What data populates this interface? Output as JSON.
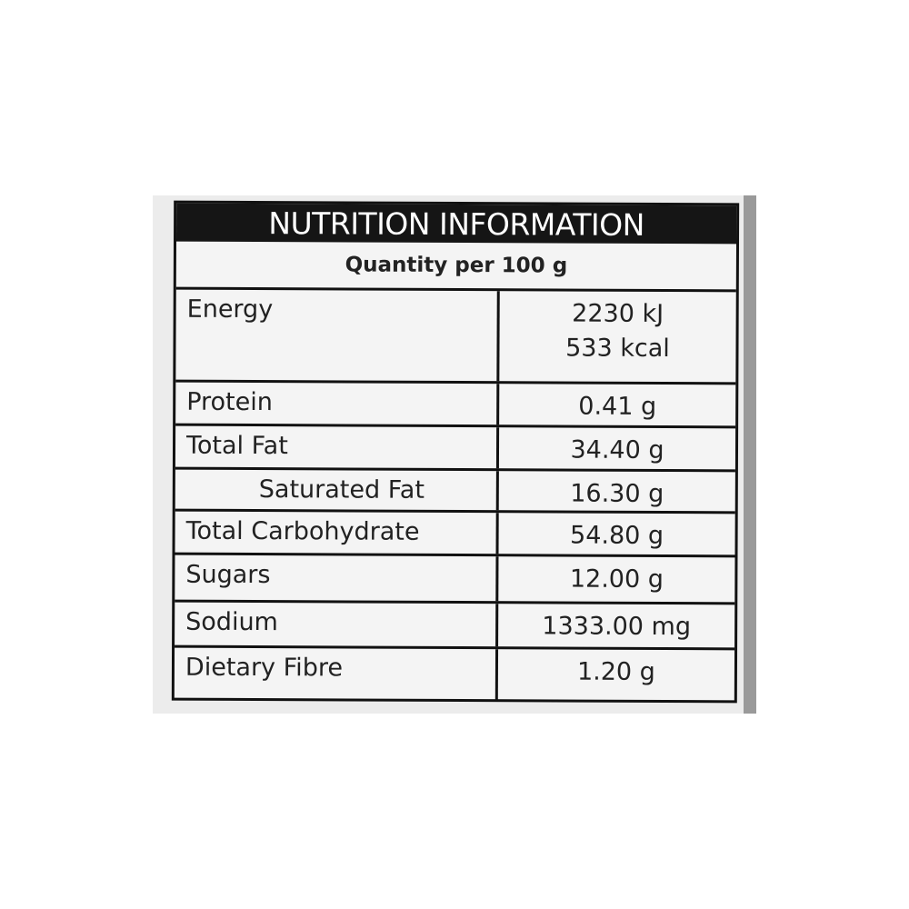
{
  "title": "NUTRITION INFORMATION",
  "serving": "Quantity per 100 g",
  "rows": [
    {
      "name": "Energy",
      "value": "2230 kJ",
      "value2": "533 kcal"
    },
    {
      "name": "Protein",
      "value": "0.41 g"
    },
    {
      "name": "Total Fat",
      "value": "34.40 g"
    },
    {
      "name": "Saturated Fat",
      "value": "16.30 g"
    },
    {
      "name": "Total Carbohydrate",
      "value": "54.80 g"
    },
    {
      "name": "Sugars",
      "value": "12.00 g"
    },
    {
      "name": "Sodium",
      "value": "1333.00 mg"
    },
    {
      "name": "Dietary Fibre",
      "value": "1.20 g"
    }
  ]
}
